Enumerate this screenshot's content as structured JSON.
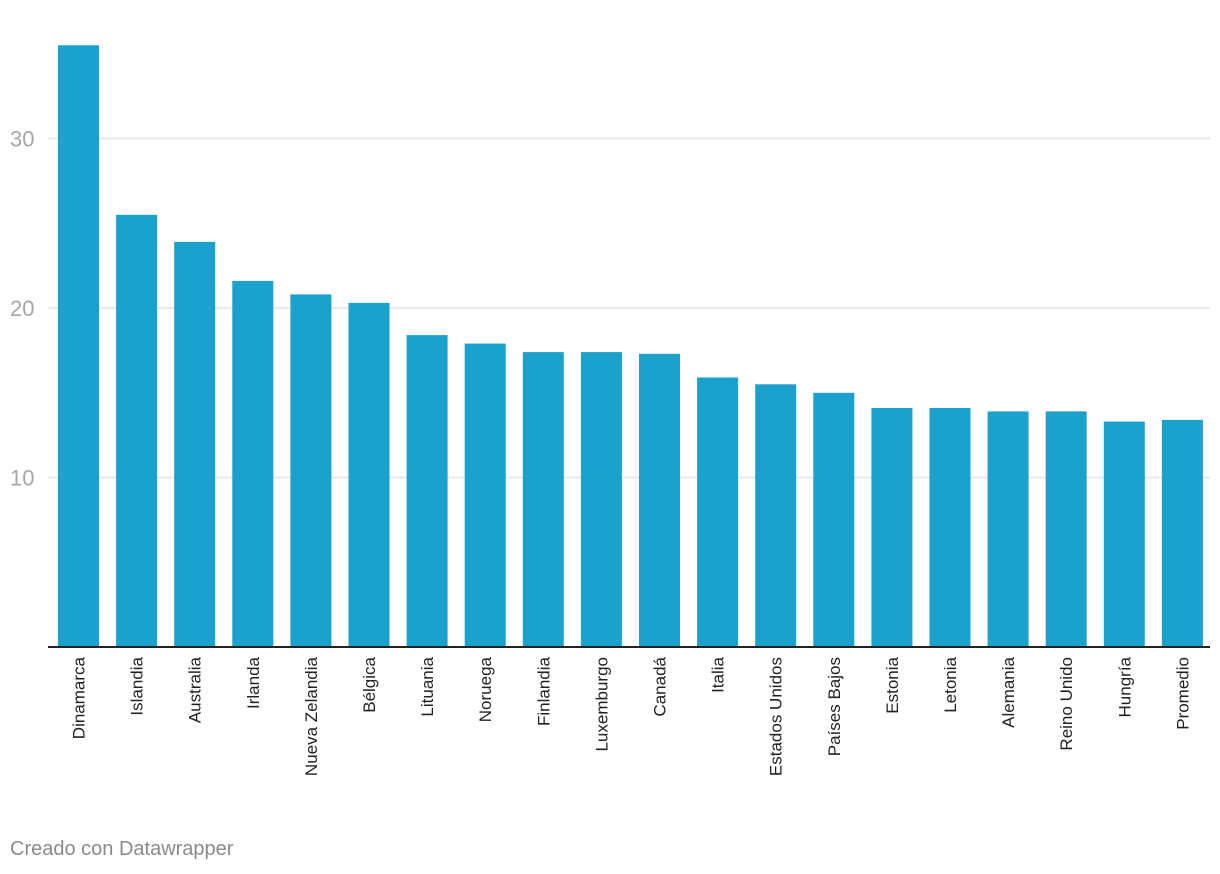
{
  "chart_data": {
    "type": "bar",
    "categories": [
      "Dinamarca",
      "Islandia",
      "Australia",
      "Irlanda",
      "Nueva Zelandia",
      "Bélgica",
      "Lituania",
      "Noruega",
      "Finlandia",
      "Luxemburgo",
      "Canadá",
      "Italia",
      "Estados Unidos",
      "Países Bajos",
      "Estonia",
      "Letonia",
      "Alemania",
      "Reino Unido",
      "Hungría",
      "Promedio"
    ],
    "values": [
      35.5,
      25.5,
      23.9,
      21.6,
      20.8,
      20.3,
      18.4,
      17.9,
      17.4,
      17.4,
      17.3,
      15.9,
      15.5,
      15.0,
      14.1,
      14.1,
      13.9,
      13.9,
      13.3,
      13.4
    ],
    "title": "",
    "xlabel": "",
    "ylabel": "",
    "ylim": [
      0,
      38
    ],
    "yticks": [
      10,
      20,
      30
    ],
    "grid": true,
    "legend": "none",
    "bar_color": "#1aa1cc",
    "gridline_color": "#e3e3e3",
    "axis_color": "#222222",
    "tick_label_color": "#a6a6a6",
    "category_label_color": "#222222"
  },
  "footer": {
    "credit": "Creado con Datawrapper"
  }
}
